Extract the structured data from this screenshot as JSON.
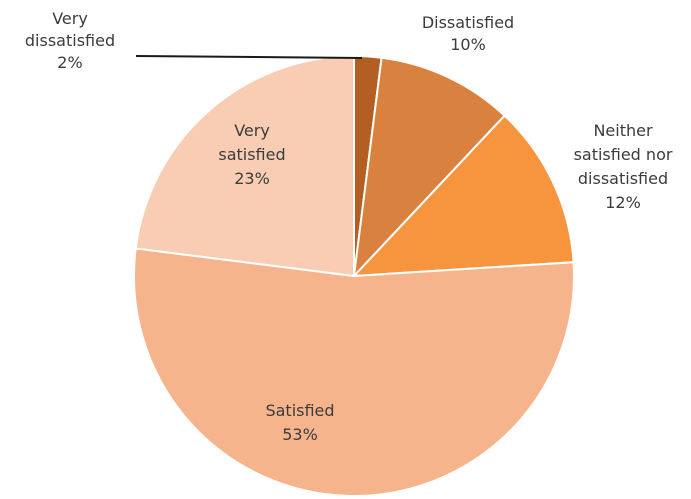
{
  "chart_data": {
    "type": "pie",
    "title": "",
    "slices": [
      {
        "label_lines": [
          "Very",
          "dissatisfied"
        ],
        "pct_label": "2%",
        "value": 2,
        "color": "#b35f24"
      },
      {
        "label_lines": [
          "Dissatisfied"
        ],
        "pct_label": "10%",
        "value": 10,
        "color": "#d9823f"
      },
      {
        "label_lines": [
          "Neither",
          "satisfied nor",
          "dissatisfied"
        ],
        "pct_label": "12%",
        "value": 12,
        "color": "#f7953f"
      },
      {
        "label_lines": [
          "Satisfied"
        ],
        "pct_label": "53%",
        "value": 53,
        "color": "#f5b48c"
      },
      {
        "label_lines": [
          "Very",
          "satisfied"
        ],
        "pct_label": "23%",
        "value": 23,
        "color": "#f9cdb3"
      }
    ]
  }
}
